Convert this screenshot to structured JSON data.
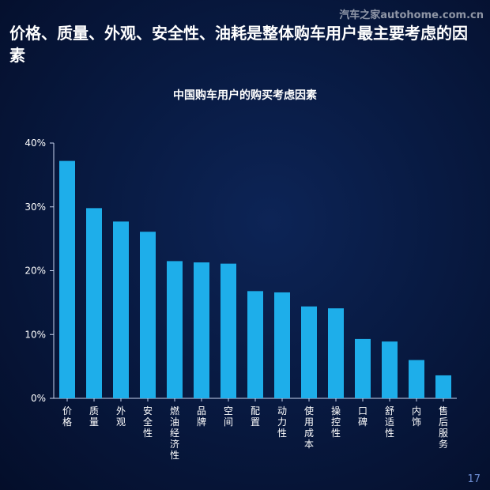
{
  "watermark": "汽车之家autohome.com.cn",
  "headline": "价格、质量、外观、安全性、油耗是整体购车用户最主要考虑的因素",
  "page_number": "17",
  "colors": {
    "bar": "#1eaeea",
    "axis": "#c8d4ef",
    "text": "#ffffff"
  },
  "chart_data": {
    "type": "bar",
    "title": "中国购车用户的购买考虑因素",
    "xlabel": "",
    "ylabel": "",
    "ylim": [
      0,
      40
    ],
    "yticks": [
      "0%",
      "10%",
      "20%",
      "30%",
      "40%"
    ],
    "categories": [
      "价格",
      "质量",
      "外观",
      "安全性",
      "燃油经济性",
      "品牌",
      "空间",
      "配置",
      "动力性",
      "使用成本",
      "操控性",
      "口碑",
      "舒适性",
      "内饰",
      "售后服务"
    ],
    "values": [
      37.2,
      29.8,
      27.7,
      26.1,
      21.5,
      21.3,
      21.1,
      16.8,
      16.6,
      14.4,
      14.1,
      9.3,
      8.9,
      6.0,
      3.6
    ],
    "grid": false,
    "legend": "none"
  }
}
